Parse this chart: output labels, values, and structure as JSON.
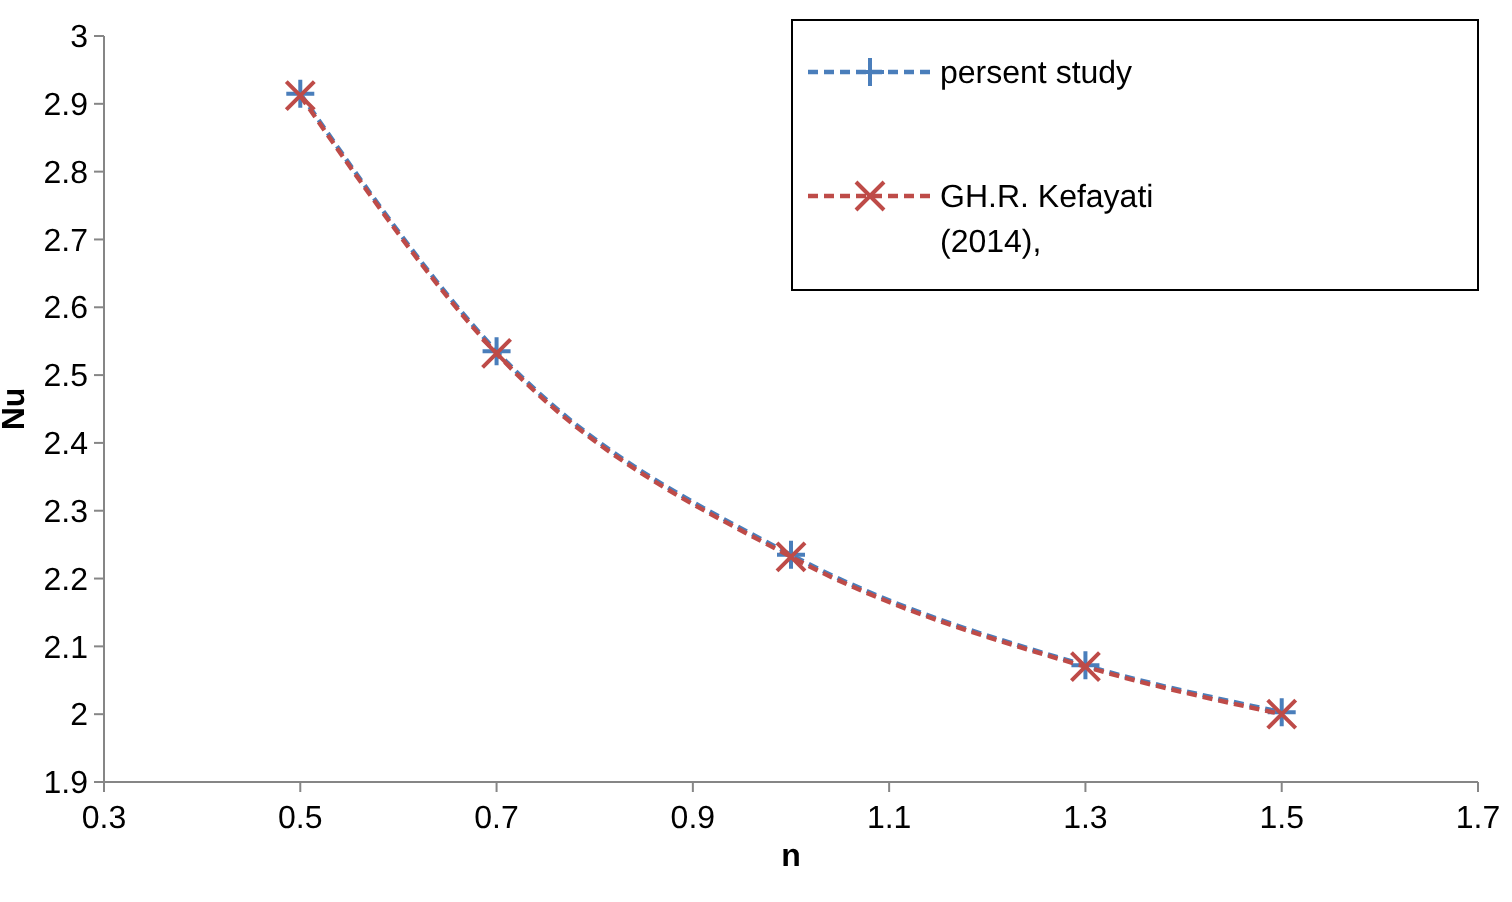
{
  "chart_data": {
    "type": "line",
    "xlabel": "n",
    "ylabel": "Nu",
    "x": [
      0.5,
      0.7,
      1.0,
      1.3,
      1.5
    ],
    "series": [
      {
        "name": "persent study",
        "color": "#4a7ebb",
        "values": [
          2.915,
          2.535,
          2.235,
          2.072,
          2.003
        ],
        "marker": "cross"
      },
      {
        "name": "GH.R. Kefayati (2014),",
        "color": "#be4b48",
        "values": [
          2.912,
          2.532,
          2.232,
          2.07,
          2.0
        ],
        "marker": "cross"
      }
    ],
    "xlim": [
      0.3,
      1.7
    ],
    "xticks": [
      0.3,
      0.5,
      0.7,
      0.9,
      1.1,
      1.3,
      1.5,
      1.7
    ],
    "ylim": [
      1.9,
      3
    ],
    "yticks": [
      1.9,
      2,
      2.1,
      2.2,
      2.3,
      2.4,
      2.5,
      2.6,
      2.7,
      2.8,
      2.9,
      3
    ],
    "grid": false,
    "legend": "top right",
    "line_style": "dashed"
  }
}
